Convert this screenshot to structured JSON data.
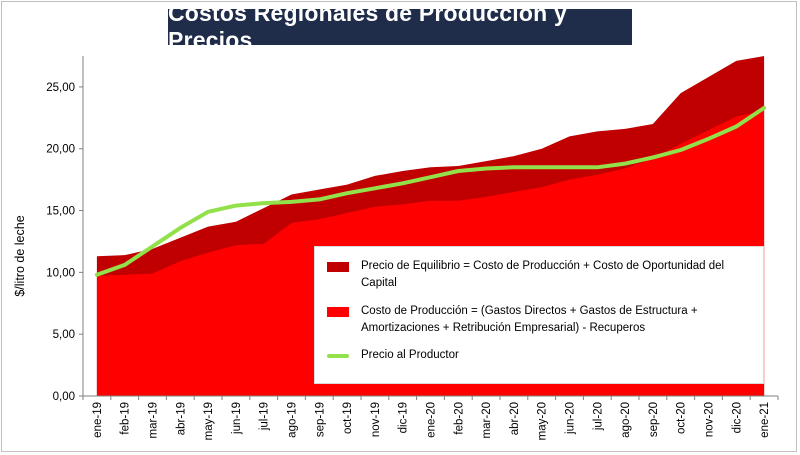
{
  "chart_data": {
    "type": "area",
    "title": "Costos Regionales de Producción y Precios",
    "xlabel": "",
    "ylabel": "$/litro de leche",
    "ylim": [
      0,
      27.5
    ],
    "yticks": [
      "0,00",
      "5,00",
      "10,00",
      "15,00",
      "20,00",
      "25,00"
    ],
    "categories": [
      "ene-19",
      "feb-19",
      "mar-19",
      "abr-19",
      "may-19",
      "jun-19",
      "jul-19",
      "ago-19",
      "sep-19",
      "oct-19",
      "nov-19",
      "dic-19",
      "ene-20",
      "feb-20",
      "mar-20",
      "abr-20",
      "may-20",
      "jun-20",
      "jul-20",
      "ago-20",
      "sep-20",
      "oct-20",
      "nov-20",
      "dic-20",
      "ene-21"
    ],
    "series": [
      {
        "name": "Precio de Equilibrio = Costo de Producción + Costo de Oportunidad del Capital",
        "kind": "area",
        "color": "#c00000",
        "values": [
          11.3,
          11.4,
          11.9,
          12.8,
          13.7,
          14.1,
          15.2,
          16.3,
          16.7,
          17.1,
          17.8,
          18.2,
          18.5,
          18.6,
          19.0,
          19.4,
          20.0,
          21.0,
          21.4,
          21.6,
          22.0,
          24.5,
          25.8,
          27.1,
          27.5
        ]
      },
      {
        "name": "Costo de Producción = (Gastos Directos + Gastos de Estructura + Amortizaciones + Retribución Empresarial) - Recuperos",
        "kind": "area",
        "color": "#ff0000",
        "values": [
          9.7,
          9.8,
          9.9,
          10.9,
          11.6,
          12.2,
          12.3,
          14.0,
          14.3,
          14.8,
          15.3,
          15.5,
          15.8,
          15.8,
          16.1,
          16.5,
          16.9,
          17.5,
          17.9,
          18.4,
          19.2,
          20.4,
          21.5,
          22.6,
          23.1
        ]
      },
      {
        "name": "Precio al Productor",
        "kind": "line",
        "color": "#92e04a",
        "values": [
          9.8,
          10.6,
          12.1,
          13.6,
          14.9,
          15.4,
          15.6,
          15.7,
          15.9,
          16.4,
          16.8,
          17.2,
          17.7,
          18.2,
          18.4,
          18.5,
          18.5,
          18.5,
          18.5,
          18.8,
          19.3,
          19.9,
          20.8,
          21.8,
          23.3
        ]
      }
    ],
    "legend_position": "bottom-right"
  }
}
